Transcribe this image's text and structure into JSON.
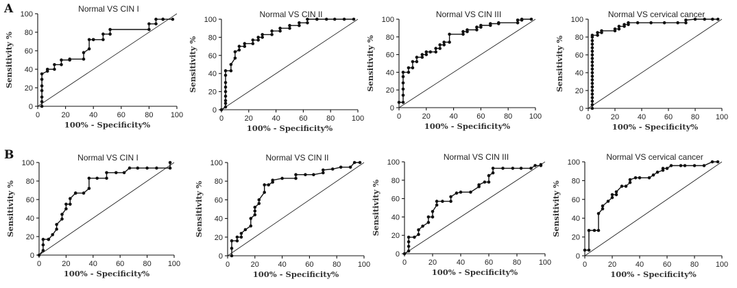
{
  "panel_labels": [
    "A",
    "B"
  ],
  "chart_data": [
    {
      "type": "line",
      "row": "A",
      "title": "Normal VS CIN I",
      "xlabel": "100% - Specificity%",
      "ylabel": "Sensitivity %",
      "xlim": [
        0,
        100
      ],
      "ylim": [
        0,
        100
      ],
      "xticks": [
        0,
        20,
        40,
        60,
        80,
        100
      ],
      "yticks": [
        0,
        20,
        40,
        60,
        80,
        100
      ],
      "reference_line": [
        [
          0,
          0
        ],
        [
          100,
          100
        ]
      ],
      "series": [
        {
          "x": [
            3,
            3,
            3,
            3,
            3,
            3,
            3,
            7,
            7,
            12,
            12,
            17,
            17,
            23,
            23,
            33,
            33,
            37,
            37,
            40,
            40,
            47,
            47,
            52,
            52,
            80,
            80,
            85,
            85,
            90,
            90,
            97
          ],
          "y": [
            0,
            5,
            10,
            17,
            22,
            29,
            35,
            38,
            40,
            40,
            45,
            45,
            50,
            50,
            51,
            51,
            58,
            62,
            72,
            72,
            72,
            72,
            78,
            78,
            83,
            83,
            89,
            89,
            94,
            94,
            94,
            94
          ]
        }
      ]
    },
    {
      "type": "line",
      "row": "A",
      "title": "Normal VS CIN II",
      "xlabel": "100% - Specificity%",
      "ylabel": "Sensitivity %",
      "xlim": [
        0,
        100
      ],
      "ylim": [
        0,
        100
      ],
      "xticks": [
        0,
        20,
        40,
        60,
        80,
        100
      ],
      "yticks": [
        0,
        20,
        40,
        60,
        80,
        100
      ],
      "reference_line": [
        [
          0,
          0
        ],
        [
          100,
          100
        ]
      ],
      "series": [
        {
          "x": [
            0,
            3,
            3,
            3,
            3,
            3,
            3,
            3,
            3,
            3,
            7,
            7,
            10,
            10,
            13,
            13,
            17,
            17,
            23,
            23,
            27,
            27,
            30,
            30,
            37,
            37,
            43,
            43,
            50,
            50,
            57,
            57,
            63,
            63,
            70,
            70,
            77,
            83,
            90,
            97
          ],
          "y": [
            0,
            3,
            7,
            10,
            15,
            20,
            25,
            30,
            38,
            43,
            43,
            50,
            57,
            64,
            66,
            70,
            70,
            73,
            73,
            77,
            77,
            80,
            80,
            83,
            83,
            87,
            87,
            90,
            90,
            93,
            93,
            96,
            96,
            100,
            100,
            100,
            100,
            100,
            100,
            100
          ]
        }
      ]
    },
    {
      "type": "line",
      "row": "A",
      "title": "Normal VS CIN III",
      "xlabel": "100% - Specificity%",
      "ylabel": "Sensitivity %",
      "xlim": [
        0,
        100
      ],
      "ylim": [
        0,
        100
      ],
      "xticks": [
        0,
        20,
        40,
        60,
        80,
        100
      ],
      "yticks": [
        0,
        20,
        40,
        60,
        80,
        100
      ],
      "reference_line": [
        [
          0,
          0
        ],
        [
          100,
          100
        ]
      ],
      "series": [
        {
          "x": [
            0,
            3,
            3,
            3,
            3,
            3,
            3,
            7,
            7,
            10,
            10,
            13,
            13,
            17,
            17,
            20,
            20,
            23,
            27,
            27,
            30,
            30,
            33,
            33,
            37,
            37,
            47,
            47,
            50,
            50,
            57,
            57,
            60,
            60,
            67,
            67,
            73,
            73,
            87,
            87,
            90,
            90,
            97
          ],
          "y": [
            6,
            6,
            14,
            21,
            28,
            35,
            40,
            40,
            45,
            45,
            52,
            52,
            57,
            57,
            60,
            60,
            63,
            63,
            63,
            67,
            67,
            71,
            71,
            74,
            74,
            83,
            83,
            86,
            86,
            88,
            88,
            91,
            91,
            93,
            93,
            95,
            95,
            96,
            96,
            99,
            99,
            100,
            100
          ]
        }
      ]
    },
    {
      "type": "line",
      "row": "A",
      "title": "Normal VS  cervical cancer",
      "xlabel": "100% - Specificity%",
      "ylabel": "Sensitivity %",
      "xlim": [
        0,
        100
      ],
      "ylim": [
        0,
        100
      ],
      "xticks": [
        0,
        20,
        40,
        60,
        80,
        100
      ],
      "yticks": [
        0,
        20,
        40,
        60,
        80,
        100
      ],
      "reference_line": [
        [
          0,
          0
        ],
        [
          100,
          100
        ]
      ],
      "series": [
        {
          "x": [
            3,
            3,
            3,
            3,
            3,
            3,
            3,
            3,
            3,
            3,
            3,
            3,
            3,
            3,
            3,
            3,
            3,
            3,
            3,
            3,
            3,
            3,
            7,
            7,
            10,
            10,
            20,
            20,
            23,
            23,
            27,
            27,
            30,
            30,
            37,
            47,
            57,
            67,
            73,
            73,
            80,
            87,
            93,
            97
          ],
          "y": [
            0,
            4,
            8,
            12,
            16,
            20,
            24,
            28,
            32,
            36,
            40,
            44,
            48,
            52,
            56,
            60,
            64,
            68,
            72,
            76,
            80,
            82,
            82,
            85,
            85,
            87,
            87,
            89,
            89,
            92,
            92,
            94,
            94,
            96,
            96,
            96,
            96,
            96,
            96,
            99,
            100,
            100,
            100,
            100
          ]
        }
      ]
    },
    {
      "type": "line",
      "row": "B",
      "title": "Normal VS CIN I",
      "xlabel": "100% - Specificity%",
      "ylabel": "Sensitivity %",
      "xlim": [
        0,
        100
      ],
      "ylim": [
        0,
        100
      ],
      "xticks": [
        0,
        20,
        40,
        60,
        80,
        100
      ],
      "yticks": [
        0,
        20,
        40,
        60,
        80,
        100
      ],
      "reference_line": [
        [
          0,
          0
        ],
        [
          100,
          100
        ]
      ],
      "series": [
        {
          "x": [
            0,
            3,
            3,
            3,
            7,
            7,
            10,
            13,
            13,
            17,
            17,
            20,
            20,
            23,
            23,
            27,
            27,
            33,
            37,
            37,
            43,
            50,
            50,
            57,
            63,
            67,
            73,
            80,
            87,
            97,
            97
          ],
          "y": [
            0,
            5,
            11,
            17,
            17,
            17,
            22,
            28,
            33,
            39,
            44,
            50,
            55,
            55,
            61,
            67,
            67,
            67,
            72,
            83,
            83,
            83,
            89,
            89,
            89,
            94,
            94,
            94,
            94,
            94,
            100
          ]
        }
      ]
    },
    {
      "type": "line",
      "row": "B",
      "title": "Normal VS CIN II",
      "xlabel": "100% - Specificity%",
      "ylabel": "Sensitivity %",
      "xlim": [
        0,
        100
      ],
      "ylim": [
        0,
        100
      ],
      "xticks": [
        0,
        20,
        40,
        60,
        80,
        100
      ],
      "yticks": [
        0,
        20,
        40,
        60,
        80,
        100
      ],
      "reference_line": [
        [
          0,
          0
        ],
        [
          100,
          100
        ]
      ],
      "series": [
        {
          "x": [
            3,
            3,
            3,
            7,
            7,
            10,
            10,
            13,
            17,
            17,
            20,
            20,
            20,
            23,
            23,
            27,
            27,
            30,
            33,
            33,
            40,
            50,
            50,
            57,
            63,
            70,
            70,
            77,
            83,
            90,
            93,
            97
          ],
          "y": [
            0,
            8,
            16,
            16,
            20,
            20,
            24,
            28,
            32,
            40,
            44,
            48,
            52,
            56,
            60,
            68,
            76,
            76,
            79,
            81,
            83,
            83,
            87,
            87,
            87,
            89,
            92,
            93,
            95,
            95,
            100,
            100
          ]
        }
      ]
    },
    {
      "type": "line",
      "row": "B",
      "title": "Normal VS CIN III",
      "xlabel": "100% - Specificity%",
      "ylabel": "Sensitivity %",
      "xlim": [
        0,
        100
      ],
      "ylim": [
        0,
        100
      ],
      "xticks": [
        0,
        20,
        40,
        60,
        80,
        100
      ],
      "yticks": [
        0,
        20,
        40,
        60,
        80,
        100
      ],
      "reference_line": [
        [
          0,
          0
        ],
        [
          100,
          100
        ]
      ],
      "series": [
        {
          "x": [
            0,
            3,
            3,
            3,
            3,
            7,
            10,
            10,
            13,
            17,
            17,
            20,
            20,
            23,
            23,
            27,
            33,
            33,
            37,
            40,
            47,
            53,
            53,
            57,
            60,
            60,
            63,
            63,
            70,
            77,
            83,
            90,
            93,
            97,
            97
          ],
          "y": [
            0,
            3,
            8,
            13,
            18,
            18,
            21,
            26,
            30,
            34,
            40,
            40,
            46,
            53,
            57,
            57,
            57,
            62,
            66,
            67,
            67,
            73,
            75,
            78,
            78,
            85,
            88,
            93,
            93,
            93,
            93,
            93,
            96,
            96,
            97
          ]
        }
      ]
    },
    {
      "type": "line",
      "row": "B",
      "title": "Normal VS cervical cancer",
      "xlabel": "100% - Specificity%",
      "ylabel": "Sensitivity %",
      "xlim": [
        0,
        100
      ],
      "ylim": [
        0,
        100
      ],
      "xticks": [
        0,
        20,
        40,
        60,
        80,
        100
      ],
      "yticks": [
        0,
        20,
        40,
        60,
        80,
        100
      ],
      "reference_line": [
        [
          0,
          0
        ],
        [
          100,
          100
        ]
      ],
      "series": [
        {
          "x": [
            0,
            3,
            3,
            7,
            10,
            10,
            13,
            13,
            17,
            20,
            20,
            23,
            23,
            27,
            30,
            33,
            33,
            37,
            40,
            47,
            50,
            53,
            57,
            57,
            60,
            63,
            70,
            73,
            80,
            87,
            93,
            97
          ],
          "y": [
            6,
            6,
            27,
            27,
            27,
            45,
            50,
            53,
            58,
            62,
            65,
            65,
            68,
            74,
            74,
            78,
            81,
            83,
            83,
            83,
            86,
            89,
            91,
            93,
            93,
            96,
            96,
            96,
            96,
            96,
            100,
            100
          ]
        }
      ]
    }
  ]
}
